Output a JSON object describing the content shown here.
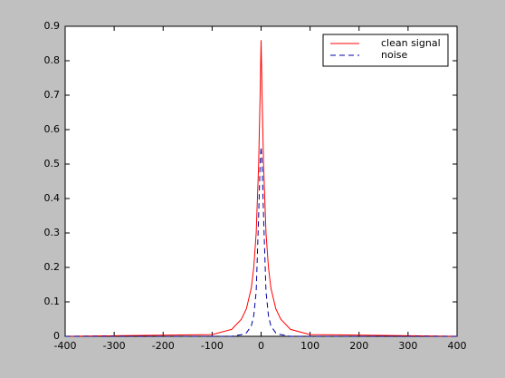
{
  "chart_data": {
    "type": "line",
    "x": [
      -400,
      -100,
      -60,
      -40,
      -30,
      -20,
      -15,
      -10,
      -5,
      -2,
      0,
      2,
      5,
      10,
      15,
      20,
      30,
      40,
      60,
      100,
      400
    ],
    "series": [
      {
        "name": "clean signal",
        "color": "#ff0000",
        "dash": "solid",
        "values": [
          0,
          0.005,
          0.02,
          0.05,
          0.08,
          0.14,
          0.2,
          0.3,
          0.5,
          0.7,
          0.86,
          0.7,
          0.5,
          0.3,
          0.2,
          0.14,
          0.08,
          0.05,
          0.02,
          0.005,
          0
        ]
      },
      {
        "name": "noise",
        "color": "#0000a0",
        "dash": "dashed",
        "values": [
          0,
          0,
          0,
          0.005,
          0.01,
          0.03,
          0.06,
          0.13,
          0.35,
          0.5,
          0.55,
          0.5,
          0.35,
          0.13,
          0.06,
          0.03,
          0.01,
          0.005,
          0,
          0,
          0
        ]
      }
    ],
    "xlim": [
      -400,
      400
    ],
    "xticks": [
      -400,
      -300,
      -200,
      -100,
      0,
      100,
      200,
      300,
      400
    ],
    "ylim": [
      0,
      0.9
    ],
    "yticks": [
      0,
      0.1,
      0.2,
      0.3,
      0.4,
      0.5,
      0.6,
      0.7,
      0.8,
      0.9
    ],
    "grid": false,
    "legend": "upper right"
  }
}
